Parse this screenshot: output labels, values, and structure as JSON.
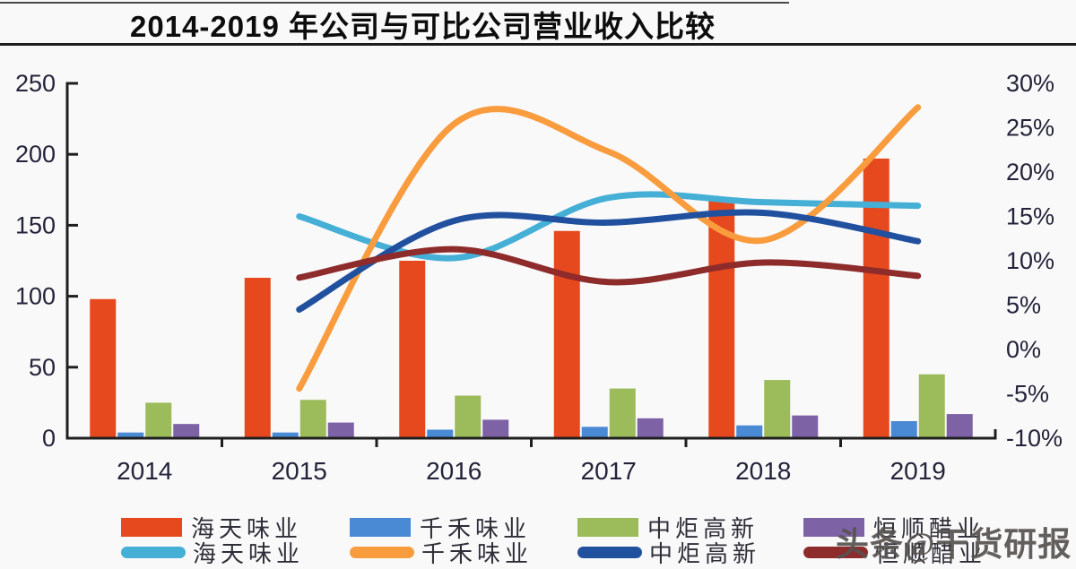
{
  "title": "2014-2019 年公司与可比公司营业收入比较",
  "watermark": "头条@干货研报",
  "chart_data": {
    "type": "combo-bar-line",
    "title": "2014-2019 年公司与可比公司营业收入比较",
    "categories": [
      "2014",
      "2015",
      "2016",
      "2017",
      "2018",
      "2019"
    ],
    "grid": "off",
    "legend_position": "bottom",
    "left_axis": {
      "min": 0,
      "max": 250,
      "step": 50,
      "tick_labels": [
        "0",
        "50",
        "100",
        "150",
        "200",
        "250"
      ]
    },
    "right_axis": {
      "min": -10,
      "max": 30,
      "step": 5,
      "format": "percent",
      "tick_labels": [
        "-10%",
        "-5%",
        "0%",
        "5%",
        "10%",
        "15%",
        "20%",
        "25%",
        "30%"
      ]
    },
    "bar_series": [
      {
        "name": "海天味业",
        "axis": "left",
        "color": "#E6491D",
        "values": [
          98,
          113,
          125,
          146,
          168,
          197
        ]
      },
      {
        "name": "千禾味业",
        "axis": "left",
        "color": "#4A89D4",
        "values": [
          4,
          4,
          6,
          8,
          9,
          12
        ]
      },
      {
        "name": "中炬高新",
        "axis": "left",
        "color": "#9CBB5B",
        "values": [
          25,
          27,
          30,
          35,
          41,
          45
        ]
      },
      {
        "name": "恒顺醋业",
        "axis": "left",
        "color": "#7D63A6",
        "values": [
          10,
          11,
          13,
          14,
          16,
          17
        ]
      }
    ],
    "line_series": [
      {
        "name": "海天味业",
        "axis": "right",
        "color": "#45AFD6",
        "x_categories": [
          "2015",
          "2016",
          "2017",
          "2018",
          "2019"
        ],
        "values": [
          15.0,
          10.3,
          17.1,
          16.6,
          16.2
        ]
      },
      {
        "name": "千禾味业",
        "axis": "right",
        "color": "#F89C3E",
        "x_categories": [
          "2015",
          "2016",
          "2017",
          "2018",
          "2019"
        ],
        "values": [
          -4.4,
          25.4,
          22.3,
          12.3,
          27.3
        ]
      },
      {
        "name": "中炬高新",
        "axis": "right",
        "color": "#21519E",
        "x_categories": [
          "2015",
          "2016",
          "2017",
          "2018",
          "2019"
        ],
        "values": [
          4.5,
          14.5,
          14.3,
          15.4,
          12.2
        ]
      },
      {
        "name": "恒顺醋业",
        "axis": "right",
        "color": "#8E2B2B",
        "x_categories": [
          "2015",
          "2016",
          "2017",
          "2018",
          "2019"
        ],
        "values": [
          8.1,
          11.3,
          7.6,
          9.8,
          8.3
        ]
      }
    ]
  }
}
